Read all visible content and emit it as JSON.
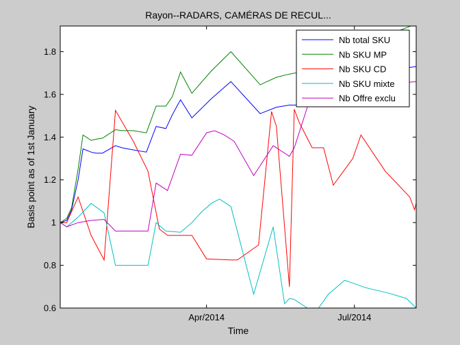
{
  "chart_data": {
    "type": "line",
    "title": "Rayon--RADARS, CAMÉRAS DE RECUL...",
    "xlabel": "Time",
    "ylabel": "Basis point as of 1st January",
    "xlim": [
      "2014-01-01",
      "2014-08-08"
    ],
    "ylim": [
      0.6,
      1.92
    ],
    "x_ticks": [
      {
        "date": "2014-04-01",
        "label": "Apr/2014"
      },
      {
        "date": "2014-07-01",
        "label": "Jul/2014"
      }
    ],
    "y_ticks": [
      {
        "value": 0.6,
        "label": "0.6"
      },
      {
        "value": 0.8,
        "label": "0.8"
      },
      {
        "value": 1.0,
        "label": "1"
      },
      {
        "value": 1.2,
        "label": "1.2"
      },
      {
        "value": 1.4,
        "label": "1.4"
      },
      {
        "value": 1.6,
        "label": "1.6"
      },
      {
        "value": 1.8,
        "label": "1.8"
      }
    ],
    "grid": false,
    "legend_position": "top-right",
    "series": [
      {
        "name": "Nb total SKU",
        "color": "#0000ff",
        "x": [
          "2014-01-01",
          "2014-01-05",
          "2014-01-08",
          "2014-01-12",
          "2014-01-15",
          "2014-01-20",
          "2014-01-23",
          "2014-01-27",
          "2014-02-04",
          "2014-02-08",
          "2014-02-15",
          "2014-02-23",
          "2014-03-01",
          "2014-03-07",
          "2014-03-11",
          "2014-03-16",
          "2014-03-23",
          "2014-04-04",
          "2014-04-16",
          "2014-05-04",
          "2014-05-14",
          "2014-05-22",
          "2014-05-29",
          "2014-05-30",
          "2014-06-01",
          "2014-06-05",
          "2014-06-12",
          "2014-06-16",
          "2014-06-24",
          "2014-07-01",
          "2014-07-13",
          "2014-07-29",
          "2014-08-08"
        ],
        "y": [
          1.0,
          1.01,
          1.06,
          1.2,
          1.345,
          1.33,
          1.325,
          1.325,
          1.36,
          1.35,
          1.34,
          1.33,
          1.45,
          1.44,
          1.505,
          1.575,
          1.49,
          1.58,
          1.66,
          1.51,
          1.54,
          1.55,
          1.55,
          1.595,
          1.59,
          1.625,
          1.685,
          1.69,
          1.7,
          1.72,
          1.74,
          1.72,
          1.73
        ]
      },
      {
        "name": "Nb SKU MP",
        "color": "#008000",
        "x": [
          "2014-01-01",
          "2014-01-05",
          "2014-01-08",
          "2014-01-12",
          "2014-01-15",
          "2014-01-20",
          "2014-01-23",
          "2014-01-27",
          "2014-02-04",
          "2014-02-08",
          "2014-02-15",
          "2014-02-23",
          "2014-03-01",
          "2014-03-07",
          "2014-03-11",
          "2014-03-16",
          "2014-03-23",
          "2014-04-04",
          "2014-04-16",
          "2014-05-04",
          "2014-05-14",
          "2014-05-22",
          "2014-05-29",
          "2014-05-30",
          "2014-06-01",
          "2014-06-05",
          "2014-06-12",
          "2014-06-16",
          "2014-06-24",
          "2014-07-01",
          "2014-07-13",
          "2014-07-29",
          "2014-08-08"
        ],
        "y": [
          1.0,
          1.02,
          1.07,
          1.25,
          1.41,
          1.385,
          1.39,
          1.395,
          1.435,
          1.43,
          1.43,
          1.42,
          1.545,
          1.545,
          1.59,
          1.705,
          1.605,
          1.71,
          1.8,
          1.645,
          1.68,
          1.695,
          1.705,
          1.75,
          1.745,
          1.82,
          1.88,
          1.89,
          1.9,
          1.9,
          1.9,
          1.9,
          1.93
        ]
      },
      {
        "name": "Nb SKU CD",
        "color": "#ff0000",
        "x": [
          "2014-01-01",
          "2014-01-05",
          "2014-01-12",
          "2014-01-20",
          "2014-01-28",
          "2014-02-04",
          "2014-02-15",
          "2014-02-24",
          "2014-03-03",
          "2014-03-08",
          "2014-03-16",
          "2014-03-23",
          "2014-04-01",
          "2014-04-16",
          "2014-04-20",
          "2014-05-03",
          "2014-05-11",
          "2014-05-14",
          "2014-05-22",
          "2014-05-25",
          "2014-05-28",
          "2014-06-05",
          "2014-06-12",
          "2014-06-18",
          "2014-06-30",
          "2014-07-05",
          "2014-07-20",
          "2014-08-04",
          "2014-08-07",
          "2014-08-09"
        ],
        "y": [
          1.0,
          1.0,
          1.12,
          0.94,
          0.825,
          1.525,
          1.38,
          1.24,
          0.97,
          0.94,
          0.94,
          0.94,
          0.83,
          0.825,
          0.825,
          0.895,
          1.52,
          1.45,
          0.7,
          1.53,
          1.47,
          1.35,
          1.35,
          1.175,
          1.3,
          1.41,
          1.24,
          1.12,
          1.06,
          1.12
        ]
      },
      {
        "name": "Nb SKU mixte",
        "color": "#00bfbf",
        "x": [
          "2014-01-01",
          "2014-01-05",
          "2014-01-12",
          "2014-01-20",
          "2014-01-28",
          "2014-02-04",
          "2014-02-24",
          "2014-03-01",
          "2014-03-07",
          "2014-03-16",
          "2014-03-23",
          "2014-03-29",
          "2014-04-04",
          "2014-04-09",
          "2014-04-16",
          "2014-04-30",
          "2014-05-12",
          "2014-05-19",
          "2014-05-22",
          "2014-05-25",
          "2014-06-02",
          "2014-06-08",
          "2014-06-15",
          "2014-06-25",
          "2014-07-08",
          "2014-07-22",
          "2014-08-02",
          "2014-08-08"
        ],
        "y": [
          1.0,
          0.98,
          1.025,
          1.09,
          1.045,
          0.8,
          0.8,
          1.0,
          0.96,
          0.955,
          1.0,
          1.05,
          1.09,
          1.11,
          1.075,
          0.665,
          0.98,
          0.62,
          0.645,
          0.64,
          0.6,
          0.59,
          0.665,
          0.73,
          0.695,
          0.67,
          0.645,
          0.6
        ]
      },
      {
        "name": "Nb Offre exclu",
        "color": "#bf00bf",
        "x": [
          "2014-01-01",
          "2014-01-05",
          "2014-01-12",
          "2014-01-20",
          "2014-01-28",
          "2014-02-04",
          "2014-02-08",
          "2014-02-24",
          "2014-03-01",
          "2014-03-08",
          "2014-03-16",
          "2014-03-23",
          "2014-04-01",
          "2014-04-06",
          "2014-04-12",
          "2014-04-18",
          "2014-04-30",
          "2014-05-12",
          "2014-05-22",
          "2014-05-25",
          "2014-06-05",
          "2014-06-12",
          "2014-06-20",
          "2014-07-10",
          "2014-08-08"
        ],
        "y": [
          1.0,
          0.98,
          1.0,
          1.01,
          1.015,
          0.96,
          0.96,
          0.96,
          1.185,
          1.15,
          1.32,
          1.315,
          1.42,
          1.43,
          1.41,
          1.38,
          1.22,
          1.36,
          1.31,
          1.35,
          1.61,
          1.61,
          1.62,
          1.64,
          1.66
        ]
      }
    ]
  }
}
